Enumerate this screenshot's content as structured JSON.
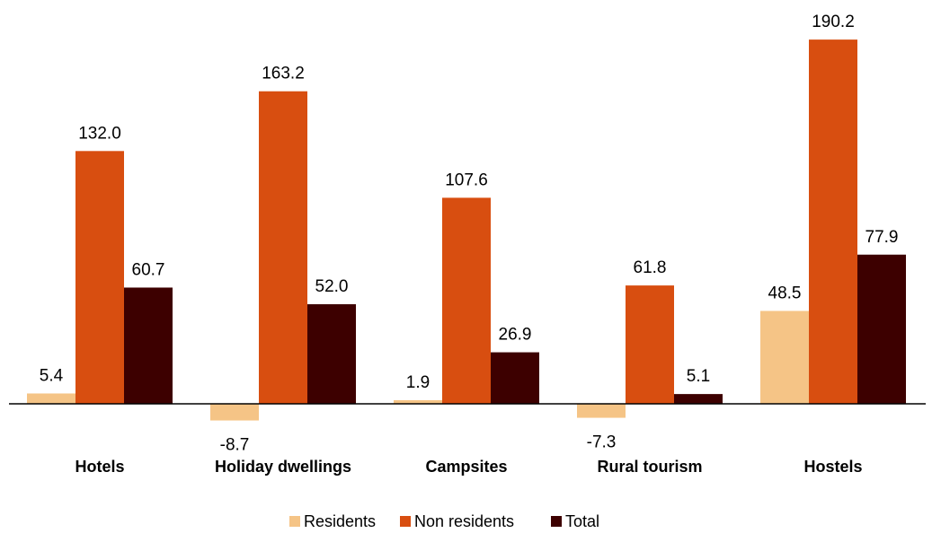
{
  "chart_data": {
    "type": "bar",
    "categories": [
      "Hotels",
      "Holiday dwellings",
      "Campsites",
      "Rural tourism",
      "Hostels"
    ],
    "series": [
      {
        "name": "Residents",
        "color": "#F5C486",
        "values": [
          5.4,
          -8.7,
          1.9,
          -7.3,
          48.5
        ]
      },
      {
        "name": "Non residents",
        "color": "#D84E10",
        "values": [
          132.0,
          163.2,
          107.6,
          61.8,
          190.2
        ]
      },
      {
        "name": "Total",
        "color": "#3D0000",
        "values": [
          60.7,
          52.0,
          26.9,
          5.1,
          77.9
        ]
      }
    ],
    "value_labels": [
      [
        "5.4",
        "-8.7",
        "1.9",
        "-7.3",
        "48.5"
      ],
      [
        "132.0",
        "163.2",
        "107.6",
        "61.8",
        "190.2"
      ],
      [
        "60.7",
        "52.0",
        "26.9",
        "5.1",
        "77.9"
      ]
    ],
    "legend_position": "bottom-center",
    "grid": false,
    "ylim": [
      -20,
      200
    ]
  }
}
